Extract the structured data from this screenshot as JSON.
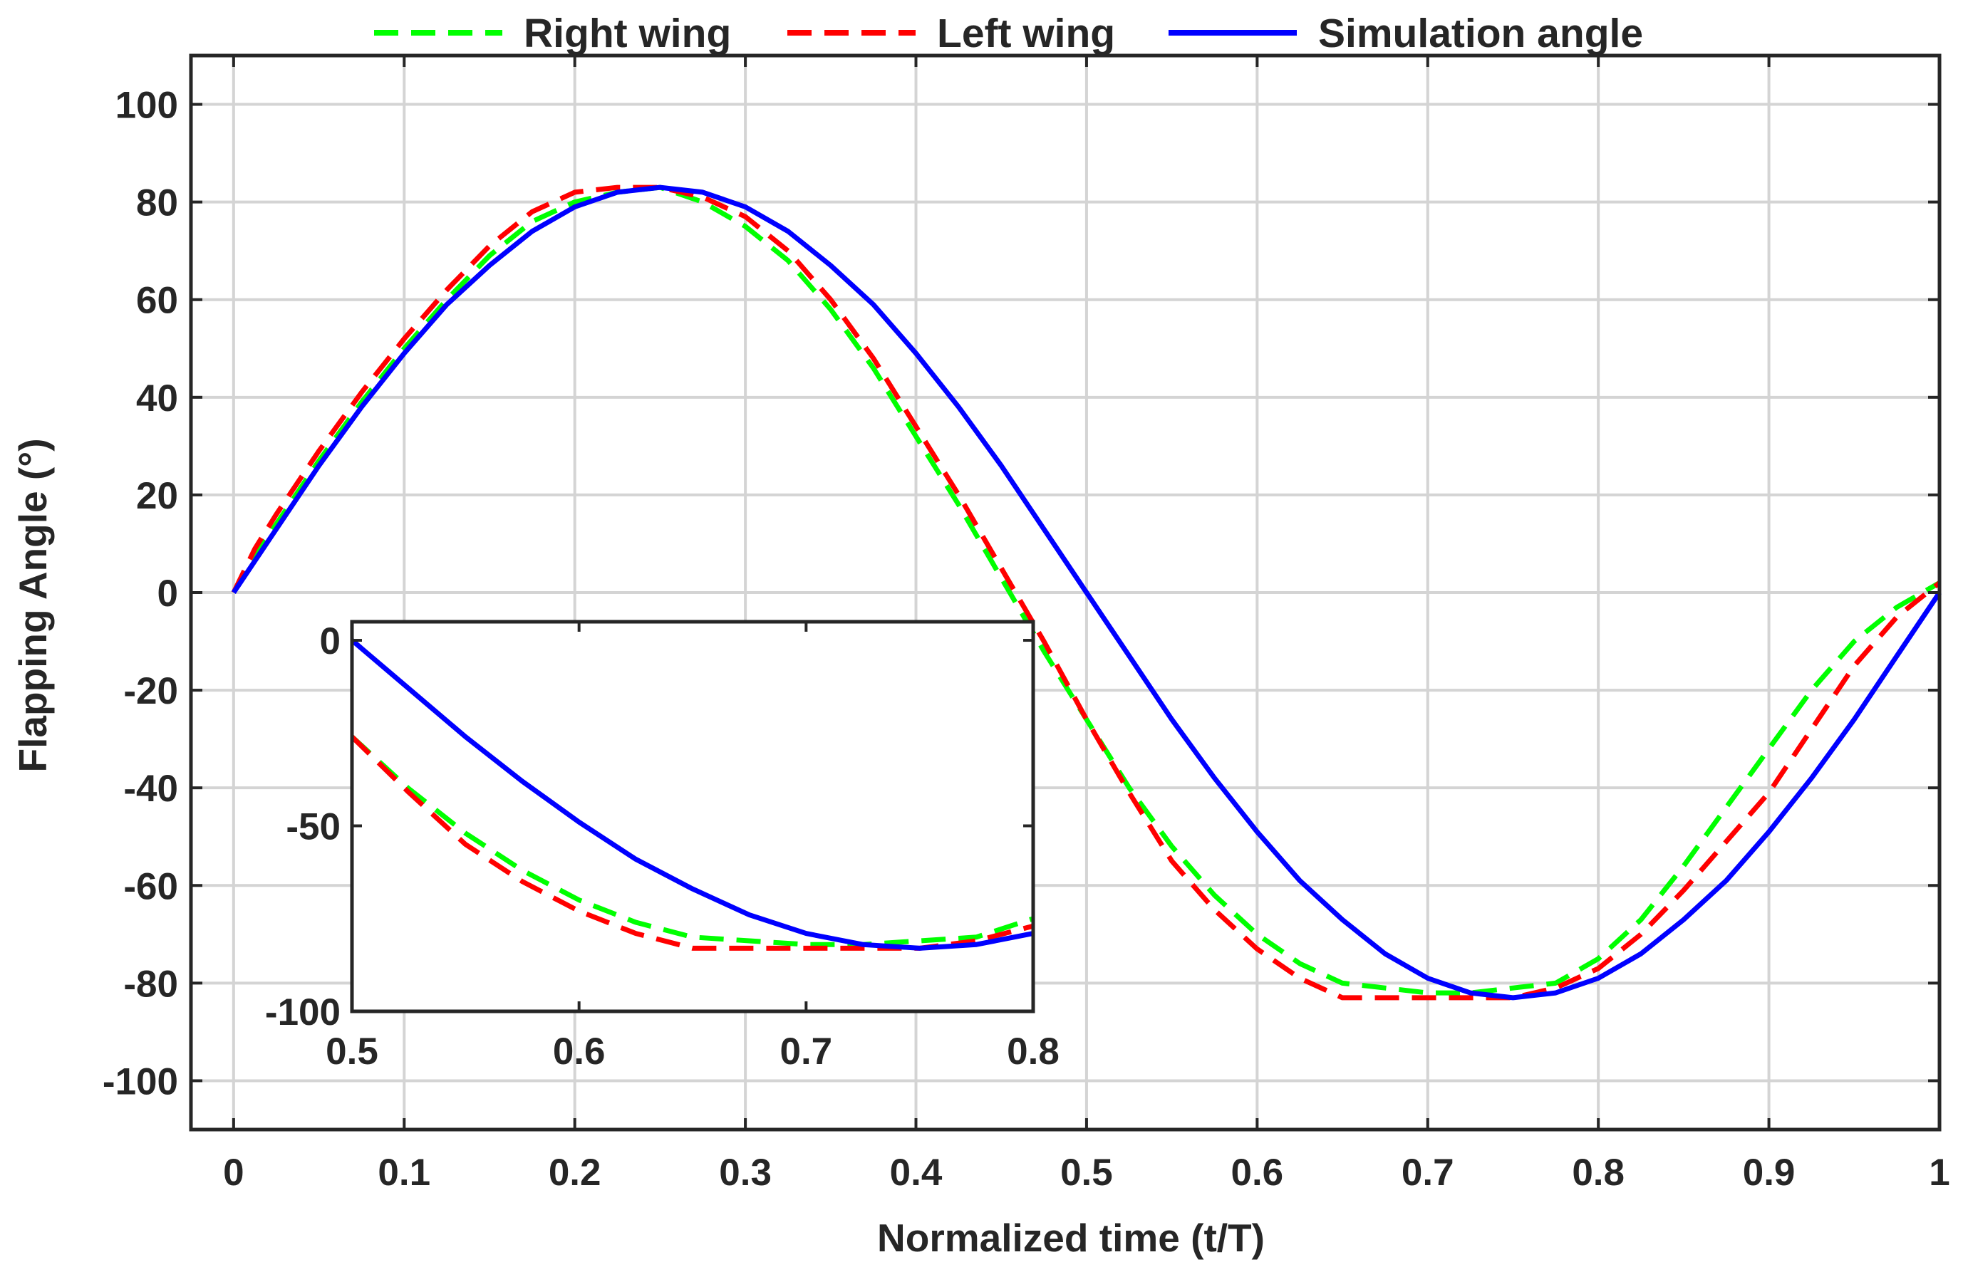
{
  "chart_data": {
    "type": "line",
    "title": "",
    "xlabel": "Normalized time (t/T)",
    "ylabel": "Flapping Angle (°)",
    "xlim": [
      -0.025,
      1
    ],
    "ylim": [
      -110,
      110
    ],
    "xticks": [
      0,
      0.1,
      0.2,
      0.3,
      0.4,
      0.5,
      0.6,
      0.7,
      0.8,
      0.9,
      1
    ],
    "xtick_labels": [
      "0",
      "0.1",
      "0.2",
      "0.3",
      "0.4",
      "0.5",
      "0.6",
      "0.7",
      "0.8",
      "0.9",
      "1"
    ],
    "yticks": [
      100,
      80,
      60,
      40,
      20,
      0,
      -20,
      -40,
      -60,
      -80,
      -100
    ],
    "ytick_labels": [
      "100",
      "80",
      "60",
      "40",
      "20",
      "0",
      "-20",
      "-40",
      "-60",
      "-80",
      "-100"
    ],
    "grid": true,
    "legend_position": "top",
    "series": [
      {
        "name": "Right wing",
        "color": "#00ff00",
        "style": "dashed",
        "x": [
          0,
          0.0125,
          0.025,
          0.05,
          0.075,
          0.1,
          0.125,
          0.15,
          0.175,
          0.2,
          0.225,
          0.25,
          0.275,
          0.3,
          0.325,
          0.35,
          0.375,
          0.4,
          0.425,
          0.45,
          0.475,
          0.5,
          0.525,
          0.55,
          0.575,
          0.6,
          0.625,
          0.65,
          0.675,
          0.7,
          0.725,
          0.75,
          0.775,
          0.8,
          0.825,
          0.85,
          0.875,
          0.9,
          0.925,
          0.95,
          0.975,
          1
        ],
        "values": [
          0,
          8,
          14,
          27,
          39,
          50,
          60,
          69,
          76,
          80,
          82,
          83,
          80,
          75,
          68,
          58,
          46,
          32,
          18,
          3,
          -12,
          -26,
          -40,
          -52,
          -62,
          -70,
          -76,
          -80,
          -81,
          -82,
          -82,
          -81,
          -80,
          -75,
          -67,
          -56,
          -44,
          -32,
          -20,
          -10,
          -3,
          2
        ]
      },
      {
        "name": "Left wing",
        "color": "#ff0000",
        "style": "dashed",
        "x": [
          0,
          0.0125,
          0.025,
          0.05,
          0.075,
          0.1,
          0.125,
          0.15,
          0.175,
          0.2,
          0.225,
          0.25,
          0.275,
          0.3,
          0.325,
          0.35,
          0.375,
          0.4,
          0.425,
          0.45,
          0.475,
          0.5,
          0.525,
          0.55,
          0.575,
          0.6,
          0.625,
          0.65,
          0.675,
          0.7,
          0.725,
          0.75,
          0.775,
          0.8,
          0.825,
          0.85,
          0.875,
          0.9,
          0.925,
          0.95,
          0.975,
          1
        ],
        "values": [
          0,
          9,
          16,
          29,
          41,
          52,
          62,
          71,
          78,
          82,
          83,
          83,
          81,
          77,
          70,
          60,
          48,
          34,
          20,
          5,
          -10,
          -26,
          -41,
          -55,
          -65,
          -73,
          -79,
          -83,
          -83,
          -83,
          -83,
          -83,
          -81,
          -77,
          -70,
          -61,
          -51,
          -41,
          -28,
          -15,
          -5,
          2
        ]
      },
      {
        "name": "Simulation angle",
        "color": "#0000ff",
        "style": "solid",
        "x": [
          0,
          0.025,
          0.05,
          0.075,
          0.1,
          0.125,
          0.15,
          0.175,
          0.2,
          0.225,
          0.25,
          0.275,
          0.3,
          0.325,
          0.35,
          0.375,
          0.4,
          0.425,
          0.45,
          0.475,
          0.5,
          0.525,
          0.55,
          0.575,
          0.6,
          0.625,
          0.65,
          0.675,
          0.7,
          0.725,
          0.75,
          0.775,
          0.8,
          0.825,
          0.85,
          0.875,
          0.9,
          0.925,
          0.95,
          0.975,
          1
        ],
        "values": [
          0,
          13,
          26,
          38,
          49,
          59,
          67,
          74,
          79,
          82,
          83,
          82,
          79,
          74,
          67,
          59,
          49,
          38,
          26,
          13,
          0,
          -13,
          -26,
          -38,
          -49,
          -59,
          -67,
          -74,
          -79,
          -82,
          -83,
          -82,
          -79,
          -74,
          -67,
          -59,
          -49,
          -38,
          -26,
          -13,
          0
        ]
      }
    ],
    "inset": {
      "xlim": [
        0.5,
        0.8
      ],
      "ylim": [
        -100,
        5
      ],
      "xticks": [
        0.5,
        0.6,
        0.7,
        0.8
      ],
      "xtick_labels": [
        "0.5",
        "0.6",
        "0.7",
        "0.8"
      ],
      "yticks": [
        0,
        -50,
        -100
      ],
      "ytick_labels": [
        "0",
        "-50",
        "-100"
      ],
      "grid": false
    }
  }
}
